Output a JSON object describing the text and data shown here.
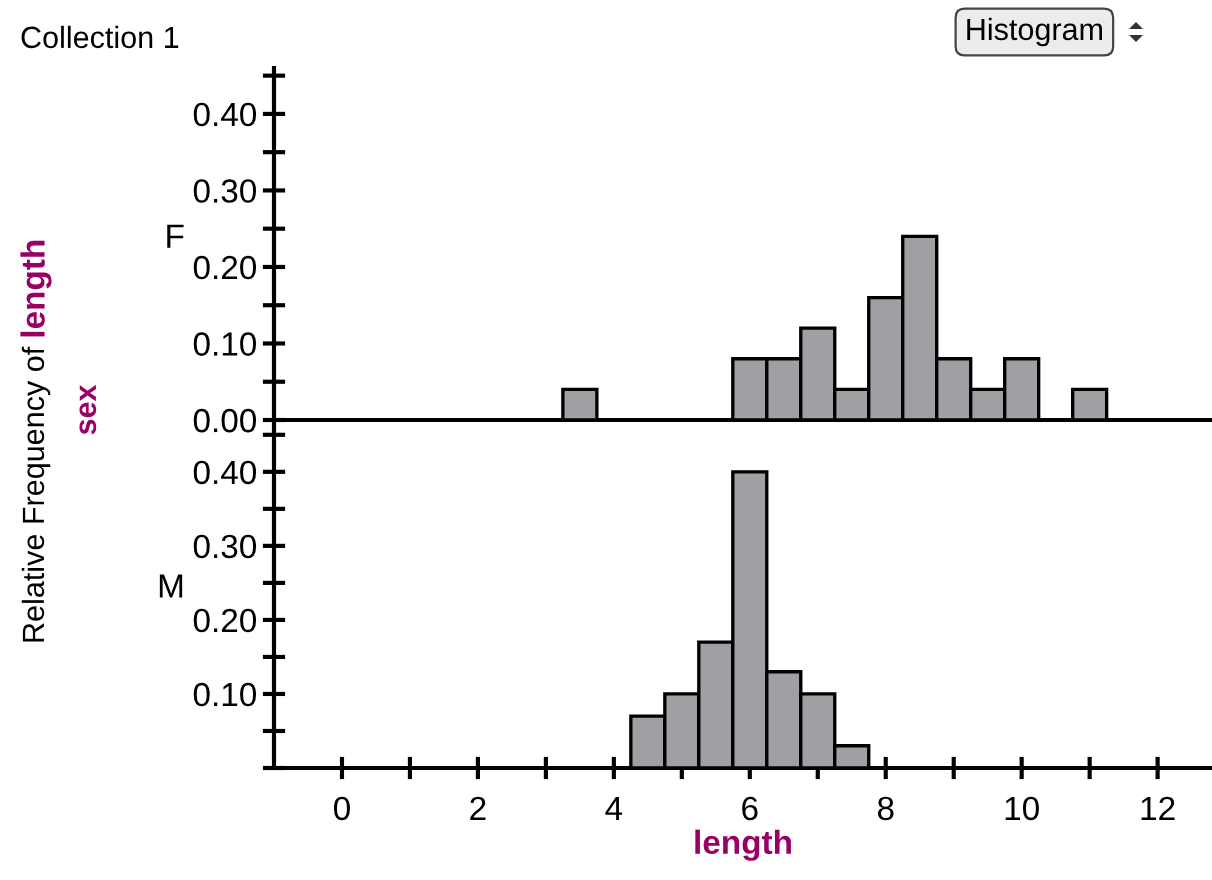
{
  "chart_data": [
    {
      "type": "histogram",
      "title": "Collection 1",
      "ylabel": "F",
      "annotations": [
        "Histogram",
        "Relative Frequency of",
        "length",
        "sex"
      ],
      "bins": [
        3.25,
        3.75,
        4.25,
        4.75,
        5.25,
        5.75,
        6.25,
        6.75,
        7.25,
        7.75,
        8.25,
        8.75,
        9.25,
        9.75,
        10.25,
        10.75,
        11.25
      ],
      "values": [
        0.04,
        0,
        0,
        0,
        0,
        0.08,
        0.08,
        0.12,
        0.04,
        0.16,
        0.24,
        0.08,
        0.04,
        0.08,
        0,
        0.04
      ],
      "color": "#a0a0a4",
      "xlim": [
        -1,
        12.8
      ],
      "ylim": [
        0,
        0.46
      ],
      "yticks": [
        {
          "value": 0,
          "label": "0.00"
        },
        {
          "value": 0.05,
          "label": null
        },
        {
          "value": 0.1,
          "label": "0.10"
        },
        {
          "value": 0.15,
          "label": null
        },
        {
          "value": 0.2,
          "label": "0.20"
        },
        {
          "value": 0.25,
          "label": null
        },
        {
          "value": 0.3,
          "label": "0.30"
        },
        {
          "value": 0.35,
          "label": null
        },
        {
          "value": 0.4,
          "label": "0.40"
        },
        {
          "value": 0.45,
          "label": null
        }
      ],
      "tick_labels": "y",
      "grid": false,
      "legend": false
    },
    {
      "type": "histogram",
      "ylabel": "M",
      "xlabel": "length",
      "bins": [
        4.25,
        4.75,
        5.25,
        5.75,
        6.25,
        6.75,
        7.25,
        7.75
      ],
      "values": [
        0.07,
        0.1,
        0.17,
        0.4,
        0.13,
        0.1,
        0.03
      ],
      "color": "#a0a0a4",
      "xlim": [
        -1,
        12.8
      ],
      "ylim": [
        0,
        0.47
      ],
      "xticks": [
        0,
        {
          "value": 1,
          "label": null
        },
        2,
        {
          "value": 3,
          "label": null
        },
        4,
        {
          "value": 5,
          "label": null
        },
        6,
        {
          "value": 7,
          "label": null
        },
        8,
        {
          "value": 9,
          "label": null
        },
        10,
        {
          "value": 11,
          "label": null
        },
        12
      ],
      "yticks": [
        {
          "value": 0.0,
          "label": null
        },
        {
          "value": 0.05,
          "label": null
        },
        {
          "value": 0.1,
          "label": "0.10"
        },
        {
          "value": 0.15,
          "label": null
        },
        {
          "value": 0.2,
          "label": "0.20"
        },
        {
          "value": 0.25,
          "label": null
        },
        {
          "value": 0.3,
          "label": "0.30"
        },
        {
          "value": 0.35,
          "label": null
        },
        {
          "value": 0.4,
          "label": "0.40"
        },
        {
          "value": 0.45,
          "label": null
        }
      ],
      "grid": false,
      "legend": false
    }
  ]
}
